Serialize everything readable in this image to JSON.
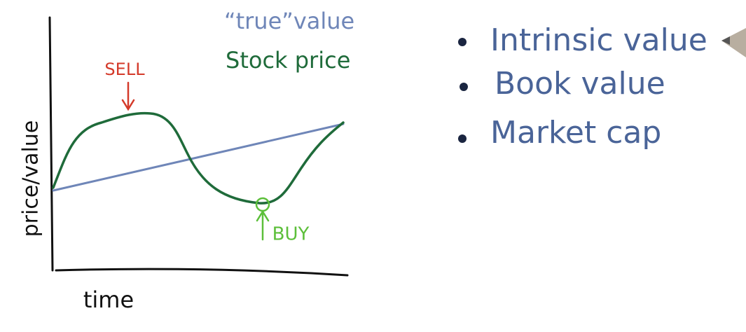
{
  "axes": {
    "y_label": "price/value",
    "x_label": "time"
  },
  "annotations": {
    "sell": "SELL",
    "buy": "BUY"
  },
  "legend": {
    "true_value": "“true”value",
    "stock_price": "Stock price"
  },
  "bullets": [
    "Intrinsic value",
    "Book value",
    "Market cap"
  ]
}
